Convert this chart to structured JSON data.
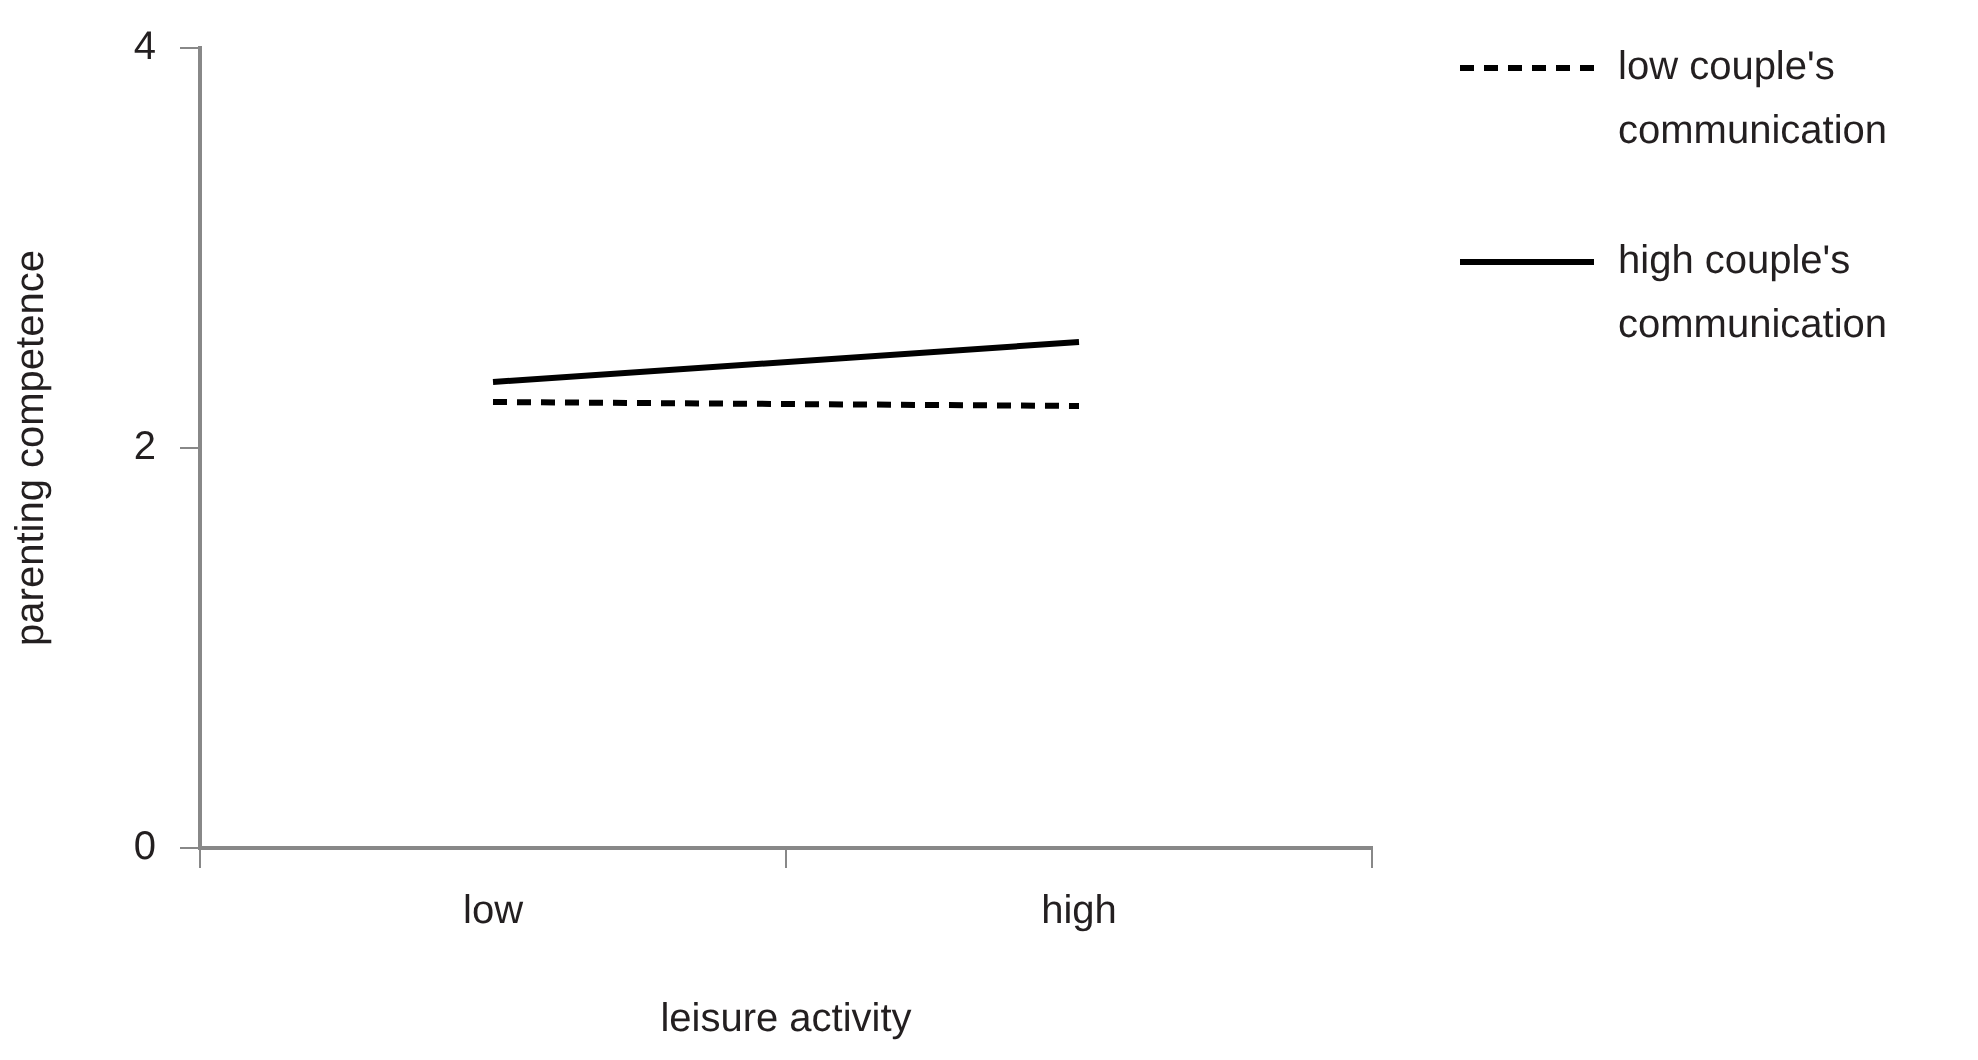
{
  "chart_data": {
    "type": "line",
    "xlabel": "leisure activity",
    "ylabel": "parenting competence",
    "categories": [
      "low",
      "high"
    ],
    "series": [
      {
        "name": "low couple's communication",
        "color": "#000000",
        "values": [
          2.23,
          2.21
        ],
        "line_style": "dashed"
      },
      {
        "name": "high couple's communication",
        "color": "#000000",
        "values": [
          2.33,
          2.53
        ],
        "line_style": "solid"
      }
    ],
    "ylim": [
      0,
      4
    ],
    "yticks": [
      0,
      2,
      4
    ],
    "grid": false,
    "legend": "right",
    "marker": "none"
  }
}
